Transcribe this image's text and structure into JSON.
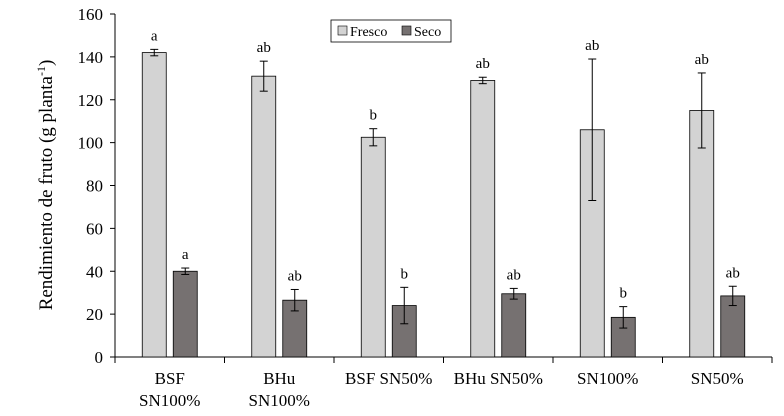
{
  "chart_data": {
    "type": "bar",
    "ylabel": "Rendimiento de  fruto (g planta⁻¹)",
    "ylabel_main": "Rendimiento de  fruto (g planta",
    "ylabel_sup": "-1",
    "ylabel_close": ")",
    "ylim": [
      0,
      160
    ],
    "yticks": [
      0,
      20,
      40,
      60,
      80,
      100,
      120,
      140,
      160
    ],
    "grid": false,
    "legend_position": "top-center",
    "categories": [
      [
        "BSF",
        "SN100%"
      ],
      [
        "BHu",
        "SN100%"
      ],
      [
        "BSF SN50%"
      ],
      [
        "BHu SN50%"
      ],
      [
        "SN100%"
      ],
      [
        "SN50%"
      ]
    ],
    "series": [
      {
        "name": "Fresco",
        "color": "#d3d3d3",
        "values": [
          142,
          131,
          102.5,
          129,
          106,
          115
        ],
        "errors": [
          1.5,
          7,
          4,
          1.5,
          33,
          17.5
        ],
        "labels": [
          "a",
          "ab",
          "b",
          "ab",
          "ab",
          "ab"
        ]
      },
      {
        "name": "Seco",
        "color": "#767171",
        "values": [
          40,
          26.5,
          24,
          29.5,
          18.5,
          28.5
        ],
        "errors": [
          1.5,
          5,
          8.5,
          2.5,
          5,
          4.5
        ],
        "labels": [
          "a",
          "ab",
          "b",
          "ab",
          "b",
          "ab"
        ]
      }
    ]
  }
}
